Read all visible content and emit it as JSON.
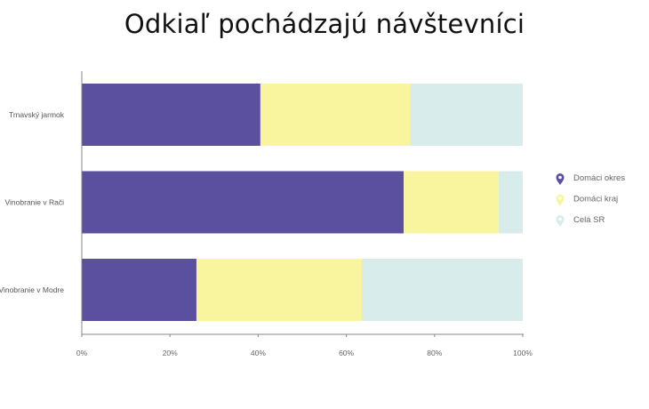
{
  "chart_data": {
    "type": "bar",
    "orientation": "horizontal",
    "stacked": true,
    "title": "Odkiaľ pochádzajú návštevníci",
    "categories": [
      "Trnavský jarmok",
      "Vinobranie v Rači",
      "Vinobranie v Modre"
    ],
    "series": [
      {
        "name": "Domáci okres",
        "color": "#5b4fa0",
        "values": [
          40.5,
          73,
          26
        ]
      },
      {
        "name": "Domáci kraj",
        "color": "#f8f59e",
        "values": [
          34,
          21.5,
          37.5
        ]
      },
      {
        "name": "Celá SR",
        "color": "#d8ecec",
        "values": [
          25.5,
          5.5,
          36.5
        ]
      }
    ],
    "xlim": [
      0,
      100
    ],
    "xticks": [
      "0%",
      "20%",
      "40%",
      "60%",
      "80%",
      "100%"
    ],
    "grid": false,
    "legend": "right"
  }
}
